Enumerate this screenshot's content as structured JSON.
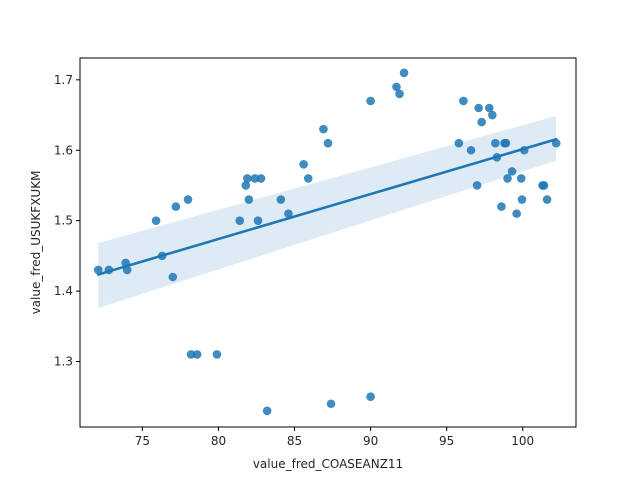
{
  "chart_data": {
    "type": "scatter",
    "xlabel": "value_fred_COASEANZ11",
    "ylabel": "value_fred_USUKFXUKM",
    "xlim": [
      70.9,
      103.5
    ],
    "ylim": [
      1.207,
      1.731
    ],
    "xticks": [
      75,
      80,
      85,
      90,
      95,
      100
    ],
    "yticks": [
      1.3,
      1.4,
      1.5,
      1.6,
      1.7
    ],
    "xtick_labels": [
      "75",
      "80",
      "85",
      "90",
      "95",
      "100"
    ],
    "ytick_labels": [
      "1.3",
      "1.4",
      "1.5",
      "1.6",
      "1.7"
    ],
    "grid": false,
    "colors": {
      "points": "#1f77b4",
      "line": "#1f77b4",
      "band": "#1f77b4"
    },
    "series": [
      {
        "points": [
          [
            72.1,
            1.43
          ],
          [
            72.8,
            1.43
          ],
          [
            73.9,
            1.44
          ],
          [
            74.0,
            1.43
          ],
          [
            75.9,
            1.5
          ],
          [
            76.3,
            1.45
          ],
          [
            77.0,
            1.42
          ],
          [
            77.2,
            1.52
          ],
          [
            78.0,
            1.53
          ],
          [
            78.2,
            1.31
          ],
          [
            78.6,
            1.31
          ],
          [
            79.9,
            1.31
          ],
          [
            81.4,
            1.5
          ],
          [
            81.8,
            1.55
          ],
          [
            81.9,
            1.56
          ],
          [
            82.0,
            1.53
          ],
          [
            82.4,
            1.56
          ],
          [
            82.6,
            1.5
          ],
          [
            82.8,
            1.56
          ],
          [
            83.2,
            1.23
          ],
          [
            84.1,
            1.53
          ],
          [
            84.6,
            1.51
          ],
          [
            85.6,
            1.58
          ],
          [
            85.9,
            1.56
          ],
          [
            86.9,
            1.63
          ],
          [
            87.2,
            1.61
          ],
          [
            87.4,
            1.24
          ],
          [
            90.0,
            1.67
          ],
          [
            90.0,
            1.25
          ],
          [
            91.7,
            1.69
          ],
          [
            91.9,
            1.68
          ],
          [
            92.2,
            1.71
          ],
          [
            95.8,
            1.61
          ],
          [
            96.1,
            1.67
          ],
          [
            96.6,
            1.6
          ],
          [
            97.0,
            1.55
          ],
          [
            97.1,
            1.66
          ],
          [
            97.3,
            1.64
          ],
          [
            97.8,
            1.66
          ],
          [
            98.0,
            1.65
          ],
          [
            98.2,
            1.61
          ],
          [
            98.3,
            1.59
          ],
          [
            98.6,
            1.52
          ],
          [
            98.8,
            1.61
          ],
          [
            98.9,
            1.61
          ],
          [
            99.0,
            1.56
          ],
          [
            99.3,
            1.57
          ],
          [
            99.6,
            1.51
          ],
          [
            99.9,
            1.56
          ],
          [
            99.95,
            1.53
          ],
          [
            100.1,
            1.6
          ],
          [
            101.3,
            1.55
          ],
          [
            101.4,
            1.55
          ],
          [
            101.6,
            1.53
          ],
          [
            102.2,
            1.61
          ]
        ]
      }
    ],
    "regression": {
      "x": [
        72.1,
        102.2
      ],
      "y": [
        1.4236,
        1.6156
      ],
      "ci_lower": [
        1.376,
        1.5852
      ],
      "ci_upper": [
        1.4682,
        1.6489
      ]
    }
  }
}
